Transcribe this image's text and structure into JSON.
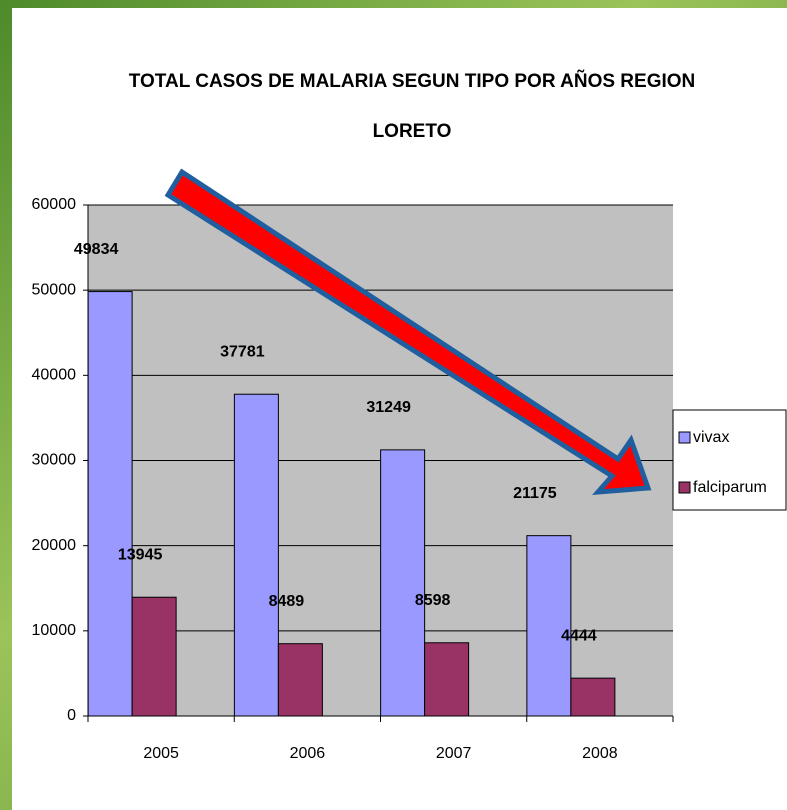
{
  "chart_data": {
    "type": "bar",
    "title": "TOTAL CASOS DE MALARIA SEGUN TIPO POR AÑOS  REGION LORETO",
    "categories": [
      "2005",
      "2006",
      "2007",
      "2008"
    ],
    "series": [
      {
        "name": "vivax",
        "color": "#9999ff",
        "values": [
          49834,
          37781,
          31249,
          21175
        ]
      },
      {
        "name": "falciparum",
        "color": "#993366",
        "values": [
          13945,
          8489,
          8598,
          4444
        ]
      }
    ],
    "ylim": [
      0,
      60000
    ],
    "yticks": [
      0,
      10000,
      20000,
      30000,
      40000,
      50000,
      60000
    ],
    "grid": true,
    "legend": "right"
  }
}
